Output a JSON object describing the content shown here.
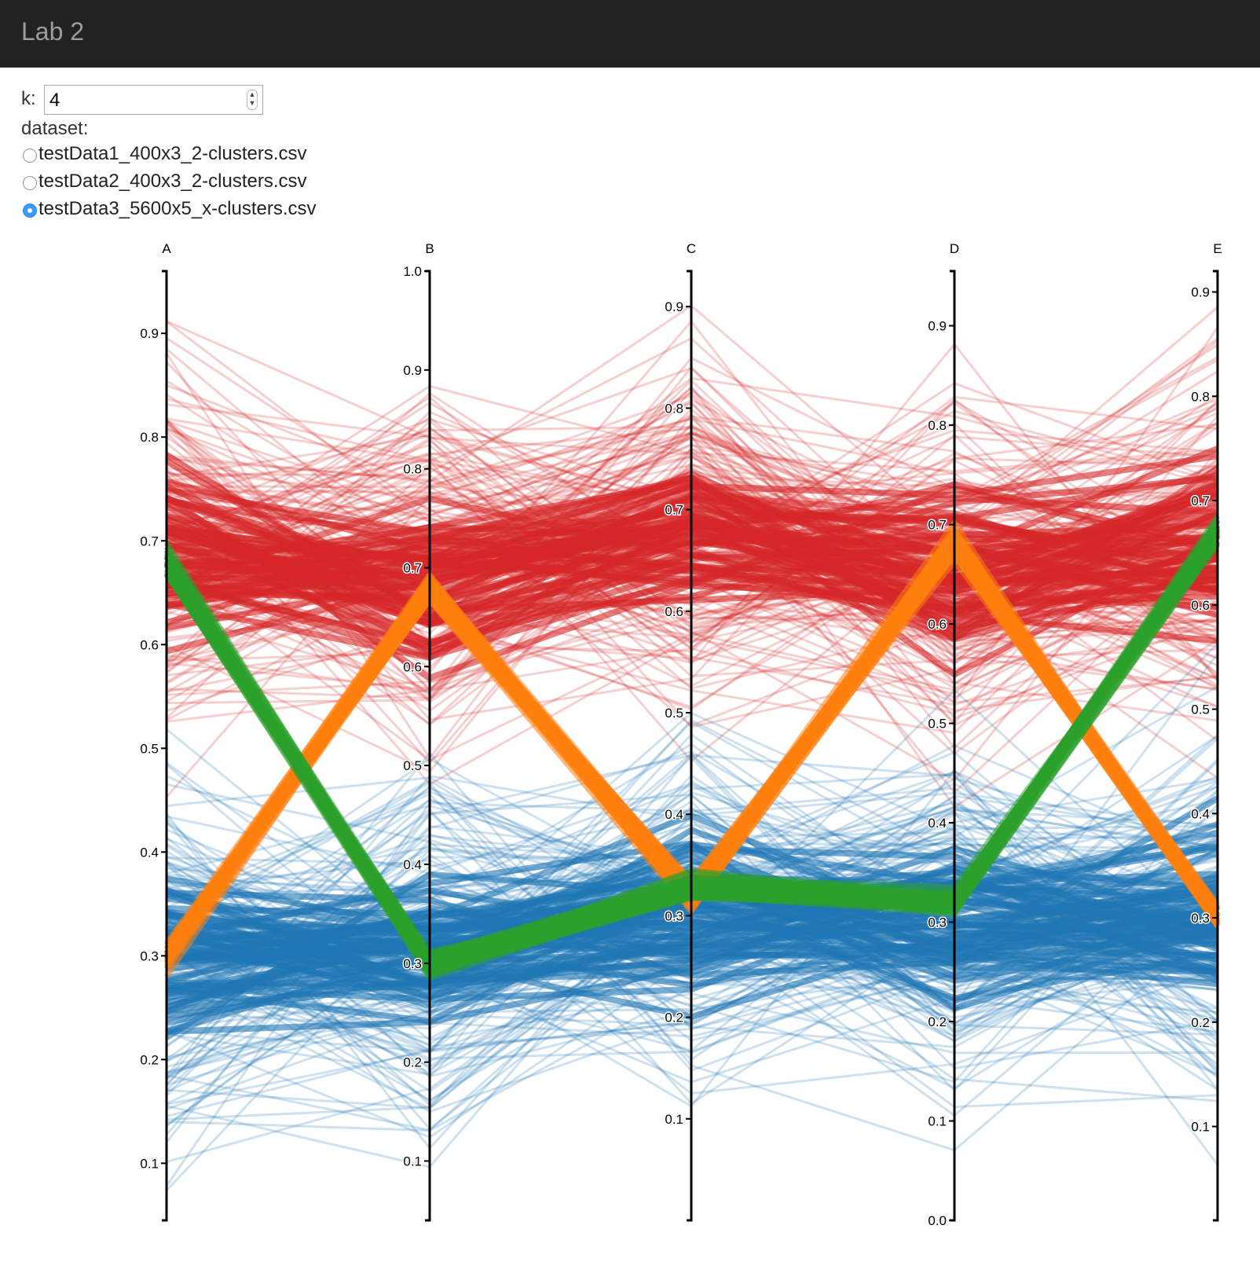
{
  "app": {
    "title": "Lab 2"
  },
  "controls": {
    "k_label": "k:",
    "k_value": "4",
    "dataset_label": "dataset:",
    "datasets": [
      {
        "label": "testData1_400x3_2-clusters.csv",
        "checked": false
      },
      {
        "label": "testData2_400x3_2-clusters.csv",
        "checked": false
      },
      {
        "label": "testData3_5600x5_x-clusters.csv",
        "checked": true
      }
    ]
  },
  "chart_data": {
    "type": "parallel-coordinates",
    "dimensions": [
      {
        "name": "A",
        "domain": [
          0.045,
          0.96
        ],
        "ticks": [
          "0.1",
          "0.2",
          "0.3",
          "0.4",
          "0.5",
          "0.6",
          "0.7",
          "0.8",
          "0.9"
        ]
      },
      {
        "name": "B",
        "domain": [
          0.04,
          1.0
        ],
        "ticks": [
          "0.1",
          "0.2",
          "0.3",
          "0.4",
          "0.5",
          "0.6",
          "0.7",
          "0.8",
          "0.9",
          "1.0"
        ]
      },
      {
        "name": "C",
        "domain": [
          0.0,
          0.935
        ],
        "ticks": [
          "0.1",
          "0.2",
          "0.3",
          "0.4",
          "0.5",
          "0.6",
          "0.7",
          "0.8",
          "0.9"
        ]
      },
      {
        "name": "D",
        "domain": [
          0.0,
          0.955
        ],
        "ticks": [
          "0.0",
          "0.1",
          "0.2",
          "0.3",
          "0.4",
          "0.5",
          "0.6",
          "0.7",
          "0.8",
          "0.9"
        ]
      },
      {
        "name": "E",
        "domain": [
          0.01,
          0.92
        ],
        "ticks": [
          "0.1",
          "0.2",
          "0.3",
          "0.4",
          "0.5",
          "0.6",
          "0.7",
          "0.8",
          "0.9"
        ]
      }
    ],
    "clusters": [
      {
        "color": "#d62728",
        "center": [
          0.69,
          0.69,
          0.68,
          0.65,
          0.66
        ],
        "spread": 0.09,
        "lines": 170
      },
      {
        "color": "#1f77b4",
        "center": [
          0.3,
          0.31,
          0.31,
          0.3,
          0.3
        ],
        "spread": 0.09,
        "lines": 170
      },
      {
        "color": "#ff7f0e",
        "center": [
          0.3,
          0.68,
          0.32,
          0.68,
          0.3
        ],
        "spread": 0.008,
        "lines": 40
      },
      {
        "color": "#2ca02c",
        "center": [
          0.68,
          0.3,
          0.33,
          0.32,
          0.67
        ],
        "spread": 0.007,
        "lines": 40
      }
    ]
  }
}
